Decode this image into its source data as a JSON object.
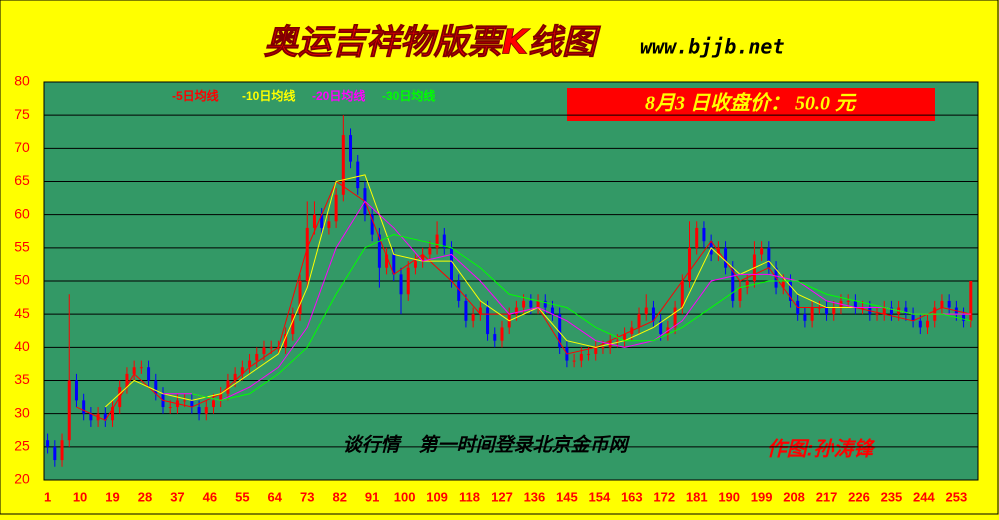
{
  "chart_data": {
    "type": "candlestick",
    "title": "奥运吉祥物版票K线图",
    "subtitle": "www.bjjb.net",
    "annotations": [
      "8月3 日收盘价： 50.0 元",
      "谈行情　第一时间登录北京金币网",
      "作图:孙涛锋"
    ],
    "up_color": "#ff0000",
    "down_color": "#0000ff",
    "xlim": [
      0,
      259
    ],
    "xticks": [
      1,
      10,
      19,
      28,
      37,
      46,
      55,
      64,
      73,
      82,
      91,
      100,
      109,
      118,
      127,
      136,
      145,
      154,
      163,
      172,
      181,
      190,
      199,
      208,
      217,
      226,
      235,
      244,
      253
    ],
    "ylim": [
      20,
      80
    ],
    "yticks": [
      20,
      25,
      30,
      35,
      40,
      45,
      50,
      55,
      60,
      65,
      70,
      75,
      80
    ],
    "grid": true,
    "x": [
      1,
      3,
      5,
      7,
      9,
      11,
      13,
      15,
      17,
      19,
      21,
      23,
      25,
      27,
      29,
      31,
      33,
      35,
      37,
      39,
      41,
      43,
      45,
      47,
      49,
      51,
      53,
      55,
      57,
      59,
      61,
      63,
      65,
      67,
      69,
      71,
      73,
      75,
      77,
      79,
      81,
      83,
      85,
      87,
      89,
      91,
      93,
      95,
      97,
      99,
      101,
      103,
      105,
      107,
      109,
      111,
      113,
      115,
      117,
      119,
      121,
      123,
      125,
      127,
      129,
      131,
      133,
      135,
      137,
      139,
      141,
      143,
      145,
      147,
      149,
      151,
      153,
      155,
      157,
      159,
      161,
      163,
      165,
      167,
      169,
      171,
      173,
      175,
      177,
      179,
      181,
      183,
      185,
      187,
      189,
      191,
      193,
      195,
      197,
      199,
      201,
      203,
      205,
      207,
      209,
      211,
      213,
      215,
      217,
      219,
      221,
      223,
      225,
      227,
      229,
      231,
      233,
      235,
      237,
      239,
      241,
      243,
      245,
      247,
      249,
      251,
      253,
      255,
      257
    ],
    "ohlc": [
      [
        26,
        27,
        24,
        25
      ],
      [
        25,
        26,
        22,
        23
      ],
      [
        23,
        27,
        22,
        26
      ],
      [
        26,
        48,
        25,
        35
      ],
      [
        35,
        36,
        31,
        32
      ],
      [
        32,
        33,
        29,
        30
      ],
      [
        30,
        31,
        28,
        29
      ],
      [
        29,
        31,
        28,
        30
      ],
      [
        30,
        31,
        28,
        29
      ],
      [
        29,
        32,
        28,
        31
      ],
      [
        31,
        35,
        30,
        34
      ],
      [
        34,
        37,
        33,
        36
      ],
      [
        36,
        38,
        35,
        37
      ],
      [
        37,
        38,
        36,
        37
      ],
      [
        37,
        38,
        34,
        35
      ],
      [
        35,
        36,
        32,
        33
      ],
      [
        33,
        34,
        30,
        31
      ],
      [
        31,
        32,
        30,
        31
      ],
      [
        31,
        33,
        30,
        32
      ],
      [
        32,
        33,
        31,
        32
      ],
      [
        32,
        33,
        30,
        31
      ],
      [
        31,
        32,
        29,
        30
      ],
      [
        30,
        32,
        29,
        31
      ],
      [
        31,
        33,
        30,
        32
      ],
      [
        32,
        34,
        31,
        33
      ],
      [
        33,
        36,
        32,
        35
      ],
      [
        35,
        37,
        34,
        36
      ],
      [
        36,
        38,
        35,
        37
      ],
      [
        37,
        39,
        36,
        38
      ],
      [
        38,
        40,
        37,
        39
      ],
      [
        39,
        41,
        38,
        40
      ],
      [
        40,
        41,
        39,
        40
      ],
      [
        40,
        41,
        39,
        40
      ],
      [
        40,
        43,
        39,
        42
      ],
      [
        42,
        46,
        41,
        45
      ],
      [
        45,
        51,
        44,
        50
      ],
      [
        50,
        62,
        49,
        58
      ],
      [
        58,
        62,
        57,
        60
      ],
      [
        60,
        61,
        57,
        58
      ],
      [
        58,
        60,
        57,
        59
      ],
      [
        59,
        64,
        58,
        63
      ],
      [
        63,
        75,
        62,
        72
      ],
      [
        72,
        73,
        67,
        68
      ],
      [
        68,
        69,
        63,
        64
      ],
      [
        64,
        65,
        59,
        60
      ],
      [
        60,
        61,
        56,
        57
      ],
      [
        57,
        58,
        49,
        52
      ],
      [
        52,
        55,
        51,
        54
      ],
      [
        54,
        55,
        50,
        51
      ],
      [
        51,
        52,
        45,
        48
      ],
      [
        48,
        53,
        47,
        52
      ],
      [
        52,
        54,
        51,
        53
      ],
      [
        53,
        55,
        52,
        54
      ],
      [
        54,
        56,
        53,
        55
      ],
      [
        55,
        59,
        54,
        57
      ],
      [
        57,
        58,
        54,
        55
      ],
      [
        55,
        56,
        49,
        50
      ],
      [
        50,
        51,
        46,
        47
      ],
      [
        47,
        48,
        43,
        44
      ],
      [
        44,
        46,
        43,
        45
      ],
      [
        45,
        47,
        44,
        46
      ],
      [
        46,
        47,
        41,
        42
      ],
      [
        42,
        43,
        40,
        41
      ],
      [
        41,
        44,
        40,
        43
      ],
      [
        43,
        46,
        42,
        45
      ],
      [
        45,
        47,
        44,
        46
      ],
      [
        46,
        48,
        45,
        47
      ],
      [
        47,
        48,
        45,
        46
      ],
      [
        46,
        48,
        45,
        47
      ],
      [
        47,
        48,
        45,
        46
      ],
      [
        46,
        47,
        44,
        45
      ],
      [
        45,
        46,
        39,
        40
      ],
      [
        40,
        41,
        37,
        38
      ],
      [
        38,
        39,
        37,
        38
      ],
      [
        38,
        40,
        37,
        39
      ],
      [
        39,
        40,
        38,
        39
      ],
      [
        39,
        41,
        38,
        40
      ],
      [
        40,
        41,
        39,
        40
      ],
      [
        40,
        42,
        39,
        41
      ],
      [
        41,
        42,
        40,
        41
      ],
      [
        41,
        43,
        40,
        42
      ],
      [
        42,
        44,
        41,
        43
      ],
      [
        43,
        46,
        42,
        45
      ],
      [
        45,
        48,
        44,
        46
      ],
      [
        46,
        47,
        43,
        44
      ],
      [
        44,
        45,
        41,
        42
      ],
      [
        42,
        44,
        41,
        43
      ],
      [
        43,
        47,
        42,
        46
      ],
      [
        46,
        51,
        45,
        50
      ],
      [
        50,
        59,
        49,
        55
      ],
      [
        55,
        59,
        54,
        58
      ],
      [
        58,
        59,
        55,
        56
      ],
      [
        56,
        57,
        53,
        54
      ],
      [
        54,
        56,
        53,
        55
      ],
      [
        55,
        56,
        51,
        52
      ],
      [
        52,
        53,
        46,
        47
      ],
      [
        47,
        50,
        46,
        49
      ],
      [
        49,
        51,
        48,
        50
      ],
      [
        50,
        56,
        49,
        54
      ],
      [
        54,
        56,
        53,
        55
      ],
      [
        55,
        56,
        51,
        52
      ],
      [
        52,
        53,
        48,
        49
      ],
      [
        49,
        51,
        48,
        50
      ],
      [
        50,
        51,
        46,
        47
      ],
      [
        47,
        48,
        44,
        45
      ],
      [
        45,
        46,
        43,
        44
      ],
      [
        44,
        47,
        43,
        46
      ],
      [
        46,
        47,
        45,
        46
      ],
      [
        46,
        47,
        44,
        45
      ],
      [
        45,
        47,
        44,
        46
      ],
      [
        46,
        48,
        45,
        47
      ],
      [
        47,
        48,
        46,
        47
      ],
      [
        47,
        48,
        45,
        46
      ],
      [
        46,
        47,
        45,
        46
      ],
      [
        46,
        47,
        44,
        45
      ],
      [
        45,
        46,
        44,
        45
      ],
      [
        45,
        47,
        44,
        46
      ],
      [
        46,
        47,
        44,
        45
      ],
      [
        45,
        47,
        44,
        46
      ],
      [
        46,
        47,
        44,
        45
      ],
      [
        45,
        46,
        43,
        44
      ],
      [
        44,
        45,
        42,
        43
      ],
      [
        43,
        45,
        42,
        44
      ],
      [
        44,
        47,
        43,
        46
      ],
      [
        46,
        48,
        45,
        47
      ],
      [
        47,
        48,
        45,
        46
      ],
      [
        46,
        47,
        44,
        45
      ],
      [
        45,
        46,
        43,
        44
      ],
      [
        44,
        50,
        43,
        50
      ]
    ],
    "series": [
      {
        "name": "-5日均线",
        "color": "#ff0000",
        "x": [
          1,
          9,
          17,
          25,
          33,
          41,
          49,
          57,
          65,
          73,
          81,
          89,
          97,
          105,
          113,
          121,
          129,
          137,
          145,
          153,
          161,
          169,
          177,
          185,
          193,
          201,
          209,
          217,
          225,
          233,
          241,
          249,
          257
        ],
        "values": [
          null,
          31,
          29,
          36,
          32,
          31,
          33,
          37,
          40,
          55,
          65,
          62,
          51,
          54,
          50,
          45,
          45,
          46,
          39,
          40,
          42,
          44,
          50,
          56,
          50,
          52,
          46,
          46,
          46,
          45,
          44,
          46,
          45
        ]
      },
      {
        "name": "-10日均线",
        "color": "#ffff00",
        "x": [
          1,
          9,
          17,
          25,
          33,
          41,
          49,
          57,
          65,
          73,
          81,
          89,
          97,
          105,
          113,
          121,
          129,
          137,
          145,
          153,
          161,
          169,
          177,
          185,
          193,
          201,
          209,
          217,
          225,
          233,
          241,
          249,
          257
        ],
        "values": [
          null,
          null,
          31,
          35,
          33,
          32,
          33,
          36,
          39,
          49,
          65,
          66,
          54,
          53,
          53,
          47,
          44,
          46,
          41,
          40,
          41,
          43,
          46,
          55,
          51,
          53,
          48,
          46,
          46,
          46,
          45,
          45,
          45
        ]
      },
      {
        "name": "-20日均线",
        "color": "#ff00ff",
        "x": [
          1,
          9,
          17,
          25,
          33,
          41,
          49,
          57,
          65,
          73,
          81,
          89,
          97,
          105,
          113,
          121,
          129,
          137,
          145,
          153,
          161,
          169,
          177,
          185,
          193,
          201,
          209,
          217,
          225,
          233,
          241,
          249,
          257
        ],
        "values": [
          null,
          null,
          null,
          null,
          33,
          33,
          32,
          34,
          37,
          43,
          55,
          62,
          58,
          53,
          54,
          50,
          45,
          46,
          44,
          41,
          40,
          41,
          44,
          50,
          51,
          51,
          50,
          47,
          46,
          46,
          45,
          45,
          45
        ]
      },
      {
        "name": "-30日均线",
        "color": "#00ff00",
        "x": [
          1,
          9,
          17,
          25,
          33,
          41,
          49,
          57,
          65,
          73,
          81,
          89,
          97,
          105,
          113,
          121,
          129,
          137,
          145,
          153,
          161,
          169,
          177,
          185,
          193,
          201,
          209,
          217,
          225,
          233,
          241,
          249,
          257
        ],
        "values": [
          null,
          null,
          null,
          null,
          null,
          33,
          32,
          33,
          36,
          40,
          48,
          55,
          57,
          56,
          55,
          52,
          48,
          47,
          46,
          43,
          41,
          41,
          43,
          46,
          49,
          50,
          50,
          48,
          47,
          46,
          45,
          45,
          44
        ]
      }
    ]
  }
}
